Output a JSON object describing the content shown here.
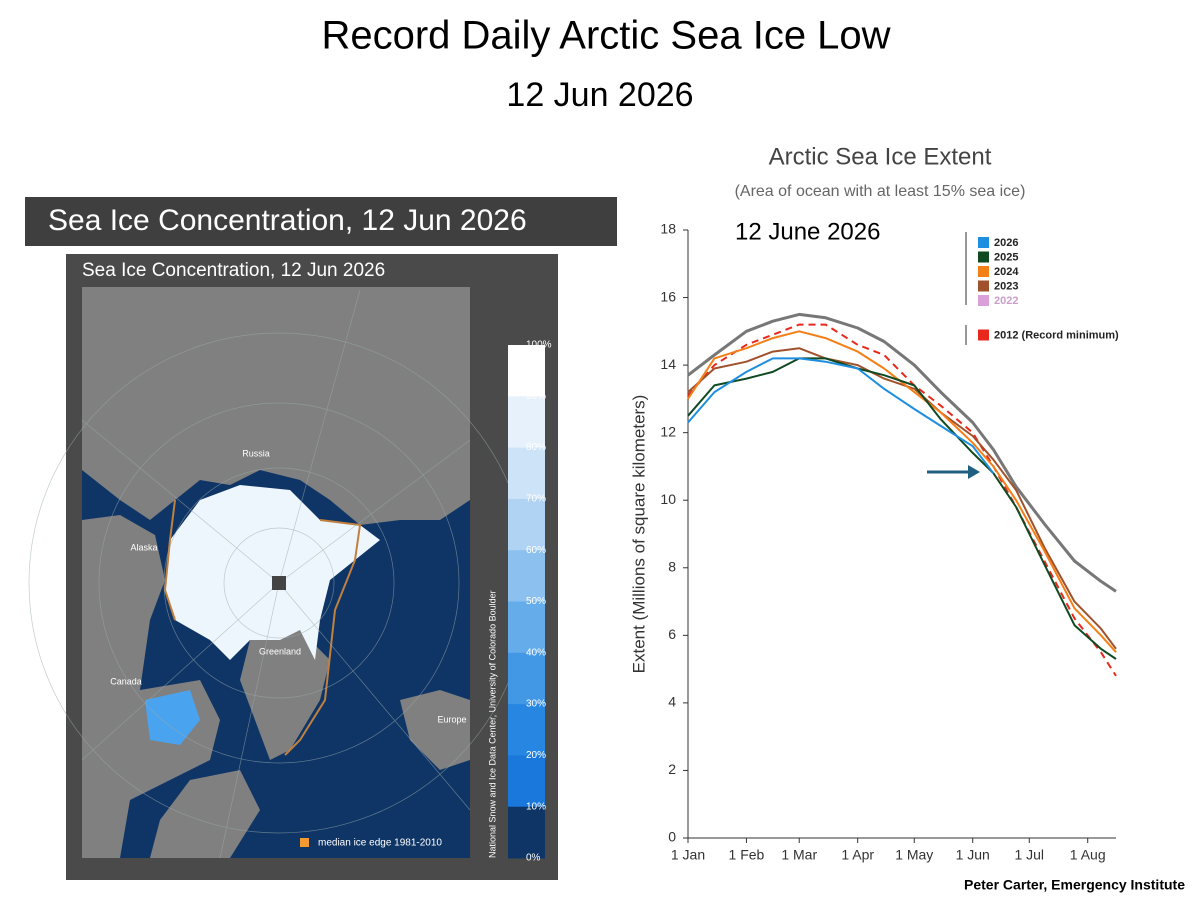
{
  "slide": {
    "title": "Record Daily Arctic Sea Ice Low",
    "subtitle": "12 Jun 2026",
    "credit": "Peter Carter, Emergency Institute"
  },
  "map": {
    "header": "Sea Ice Concentration, 12 Jun 2026",
    "title": "Sea Ice Concentration, 12 Jun 2026",
    "places": [
      "Russia",
      "Alaska",
      "Canada",
      "Greenland",
      "Europe"
    ],
    "colorbar_labels": [
      "100%",
      "90%",
      "80%",
      "70%",
      "60%",
      "50%",
      "40%",
      "30%",
      "20%",
      "10%",
      "0%"
    ],
    "legend": "median ice edge 1981-2010",
    "source": "National Snow and Ice Data Center, University of Colorado Boulder"
  },
  "chart_data": {
    "type": "line",
    "title": "Arctic Sea Ice Extent",
    "subtitle": "(Area of ocean with at least 15% sea ice)",
    "annotation": "12 June 2026",
    "y_label": "Extent (Millions of square kilometers)",
    "x": [
      1,
      15,
      32,
      46,
      60,
      74,
      91,
      105,
      121,
      135,
      152,
      163,
      175,
      190,
      206,
      220,
      228
    ],
    "xlim": [
      1,
      228
    ],
    "xticks": [
      {
        "value": 1,
        "label": "1 Jan"
      },
      {
        "value": 32,
        "label": "1 Feb"
      },
      {
        "value": 60,
        "label": "1 Mar"
      },
      {
        "value": 91,
        "label": "1 Apr"
      },
      {
        "value": 121,
        "label": "1 May"
      },
      {
        "value": 152,
        "label": "1 Jun"
      },
      {
        "value": 182,
        "label": "1 Jul"
      },
      {
        "value": 213,
        "label": "1 Aug"
      }
    ],
    "ylim": [
      0,
      18
    ],
    "yticks": [
      0,
      2,
      4,
      6,
      8,
      10,
      12,
      14,
      16,
      18
    ],
    "grid": false,
    "series": [
      {
        "color": "#777777",
        "width": 3,
        "values": [
          13.7,
          14.3,
          15.0,
          15.3,
          15.5,
          15.4,
          15.1,
          14.7,
          14.0,
          13.2,
          12.3,
          11.5,
          10.4,
          9.3,
          8.2,
          7.6,
          7.3
        ]
      },
      {
        "name": "2026",
        "color": "#1e8ee0",
        "values": [
          12.3,
          13.2,
          13.8,
          14.2,
          14.2,
          14.1,
          13.9,
          13.3,
          12.7,
          12.2,
          11.6,
          10.8,
          null,
          null,
          null,
          null,
          null
        ]
      },
      {
        "name": "2025",
        "color": "#0f4a23",
        "values": [
          12.5,
          13.4,
          13.6,
          13.8,
          14.2,
          14.2,
          13.9,
          13.7,
          13.4,
          12.4,
          11.4,
          10.8,
          9.8,
          8.1,
          6.3,
          5.6,
          5.3
        ]
      },
      {
        "name": "2024",
        "color": "#f57f17",
        "values": [
          13.0,
          14.2,
          14.5,
          14.8,
          15.0,
          14.8,
          14.4,
          13.9,
          13.2,
          12.6,
          11.7,
          11.0,
          10.0,
          8.5,
          6.8,
          6.0,
          5.5
        ]
      },
      {
        "name": "2023",
        "color": "#a0522d",
        "values": [
          13.2,
          13.9,
          14.1,
          14.4,
          14.5,
          14.2,
          14.0,
          13.6,
          13.3,
          12.6,
          11.9,
          11.2,
          10.3,
          8.6,
          7.0,
          6.2,
          5.6
        ]
      },
      {
        "name": "2022",
        "color": "#d9a0d9",
        "values": [
          null,
          null,
          null,
          null,
          null,
          null,
          null,
          null,
          null,
          null,
          null,
          null,
          null,
          null,
          null,
          null,
          null
        ]
      },
      {
        "name": "2012 (Record minimum)",
        "color": "#e8281c",
        "dashed": true,
        "values": [
          13.1,
          14.0,
          14.6,
          14.9,
          15.2,
          15.2,
          14.6,
          14.3,
          13.4,
          12.8,
          12.0,
          11.0,
          9.8,
          8.2,
          6.5,
          5.5,
          4.8
        ]
      }
    ]
  }
}
